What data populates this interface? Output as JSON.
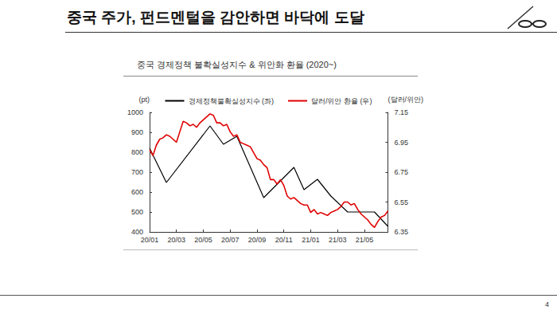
{
  "slide": {
    "title": "중국 주가, 펀드멘털을 감안하면 바닥에 도달",
    "page": 4
  },
  "chart_data": {
    "type": "line",
    "title": "중국 경제정책 불확실성지수 & 위안화 환율 (2020~)",
    "ylabel": "(pt)",
    "y2label": "(달러/위안)",
    "legend": "top",
    "grid": false,
    "categories": [
      "20/01",
      null,
      null,
      null,
      null,
      null,
      null,
      null,
      "20/03",
      null,
      null,
      null,
      null,
      null,
      null,
      null,
      "20/05",
      null,
      null,
      null,
      null,
      null,
      null,
      null,
      "20/07",
      null,
      null,
      null,
      null,
      null,
      null,
      null,
      "20/09",
      null,
      null,
      null,
      null,
      null,
      null,
      null,
      "20/11",
      null,
      null,
      null,
      null,
      null,
      null,
      null,
      "21/01",
      null,
      null,
      null,
      null,
      null,
      null,
      null,
      "21/03",
      null,
      null,
      null,
      null,
      null,
      null,
      null,
      "21/05",
      null,
      null,
      null,
      null,
      null,
      null,
      null
    ],
    "ylim": [
      400,
      1000
    ],
    "yticks": [
      400,
      500,
      600,
      700,
      800,
      900,
      1000
    ],
    "y2lim": [
      6.35,
      7.15
    ],
    "y2ticks": [
      6.35,
      6.55,
      6.75,
      6.95,
      7.15
    ],
    "series": [
      {
        "name": "경제정책불확실성지수 (좌)",
        "color": "#000000",
        "axis": "y",
        "line_style": "solid",
        "values": [
          820,
          null,
          null,
          null,
          null,
          648,
          null,
          null,
          null,
          null,
          null,
          null,
          null,
          null,
          null,
          null,
          null,
          null,
          932,
          null,
          null,
          null,
          840,
          null,
          null,
          null,
          880,
          null,
          null,
          null,
          null,
          null,
          null,
          null,
          572,
          null,
          null,
          null,
          null,
          null,
          null,
          null,
          null,
          724,
          null,
          null,
          612,
          null,
          null,
          null,
          664,
          null,
          null,
          null,
          580,
          null,
          null,
          null,
          null,
          500,
          null,
          null,
          null,
          null,
          null,
          null,
          null,
          500,
          null,
          null,
          null,
          428
        ]
      },
      {
        "name": "달러/위안 환율 (우)",
        "color": "#e00000",
        "axis": "y2",
        "line_style": "solid",
        "values": [
          6.9,
          6.86,
          6.93,
          6.97,
          6.98,
          7.0,
          6.99,
          6.97,
          6.95,
          7.02,
          7.09,
          7.08,
          7.06,
          7.07,
          7.05,
          7.08,
          7.1,
          7.12,
          7.14,
          7.13,
          7.08,
          7.08,
          7.06,
          7.07,
          7.02,
          6.99,
          7.0,
          6.95,
          6.94,
          6.93,
          6.92,
          6.88,
          6.84,
          6.83,
          6.8,
          6.78,
          6.7,
          6.7,
          6.67,
          6.7,
          6.66,
          6.59,
          6.57,
          6.58,
          6.56,
          6.54,
          6.53,
          6.53,
          6.48,
          6.5,
          6.47,
          6.48,
          6.47,
          6.46,
          6.48,
          6.49,
          6.5,
          6.52,
          6.55,
          6.55,
          6.53,
          6.54,
          6.5,
          6.47,
          6.45,
          6.43,
          6.4,
          6.38,
          6.42,
          6.45,
          6.46,
          6.49
        ]
      }
    ]
  }
}
